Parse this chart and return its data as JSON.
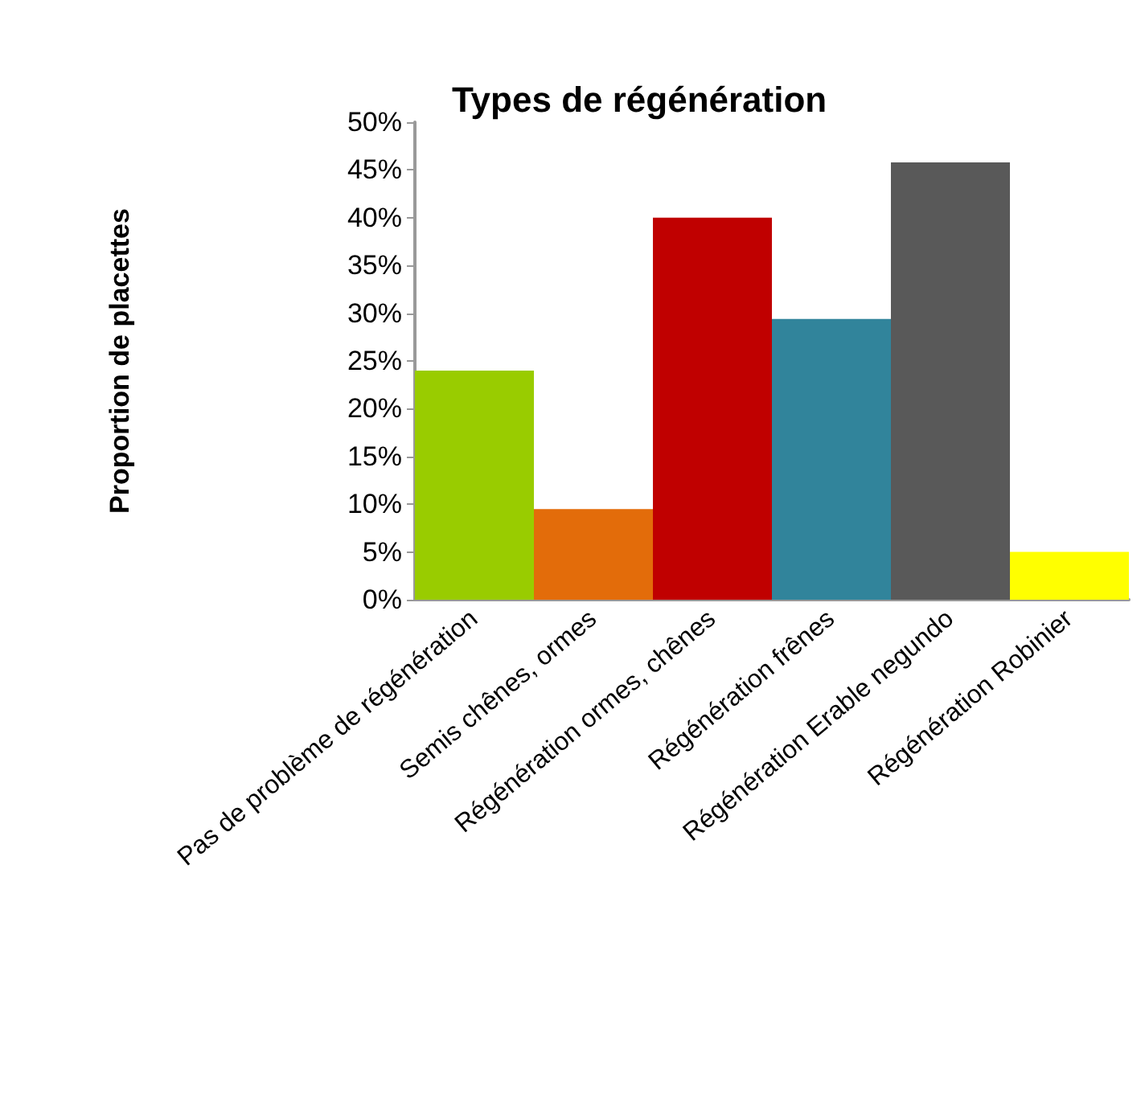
{
  "chart_data": {
    "type": "bar",
    "title": "Types de régénération",
    "ylabel": "Proportion de placettes",
    "categories": [
      "Pas de problème de régénération",
      "Semis chênes, ormes",
      "Régénération ormes, chênes",
      "Régénération frênes",
      "Régénération Erable negundo",
      "Régénération Robinier"
    ],
    "values": [
      24,
      9.5,
      40,
      29.4,
      45.8,
      5
    ],
    "colors": [
      "#99cc00",
      "#e36c0a",
      "#c00000",
      "#31849b",
      "#595959",
      "#ffff00"
    ],
    "ylim": [
      0,
      50
    ],
    "yticks": [
      {
        "value": 0,
        "label": "0%"
      },
      {
        "value": 5,
        "label": "5%"
      },
      {
        "value": 10,
        "label": "10%"
      },
      {
        "value": 15,
        "label": "15%"
      },
      {
        "value": 20,
        "label": "20%"
      },
      {
        "value": 25,
        "label": "25%"
      },
      {
        "value": 30,
        "label": "30%"
      },
      {
        "value": 35,
        "label": "35%"
      },
      {
        "value": 40,
        "label": "40%"
      },
      {
        "value": 45,
        "label": "45%"
      },
      {
        "value": 50,
        "label": "50%"
      }
    ],
    "grid": false
  }
}
